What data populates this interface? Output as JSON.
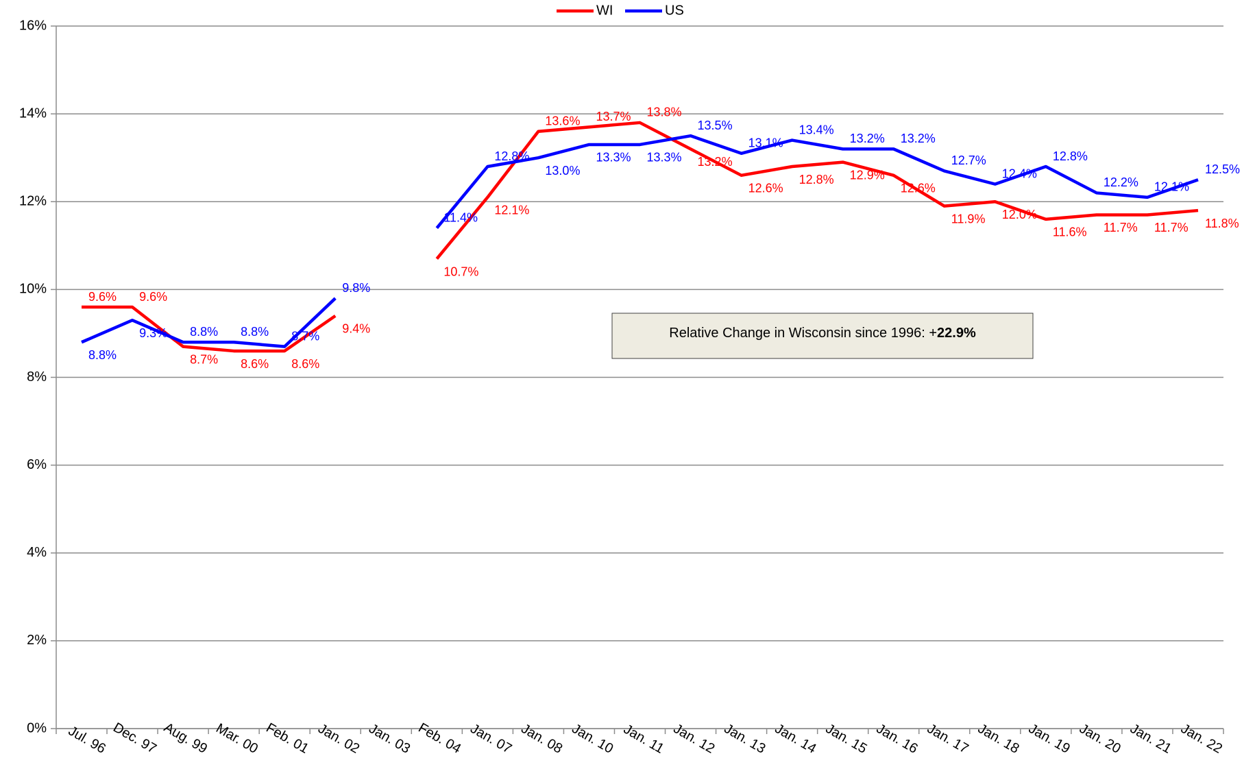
{
  "chart_data": {
    "type": "line",
    "categories": [
      "Jul. 96",
      "Dec. 97",
      "Aug. 99",
      "Mar. 00",
      "Feb. 01",
      "Jan. 02",
      "Jan. 03",
      "Feb. 04",
      "Jan. 07",
      "Jan. 08",
      "Jan. 10",
      "Jan. 11",
      "Jan. 12",
      "Jan. 13",
      "Jan. 14",
      "Jan. 15",
      "Jan. 16",
      "Jan. 17",
      "Jan. 18",
      "Jan. 19",
      "Jan. 20",
      "Jan. 21",
      "Jan. 22"
    ],
    "series": [
      {
        "name": "WI",
        "color": "#ff0000",
        "values": [
          9.6,
          9.6,
          8.7,
          8.6,
          8.6,
          9.4,
          null,
          10.7,
          12.1,
          13.6,
          13.7,
          13.8,
          13.2,
          12.6,
          12.8,
          12.9,
          12.6,
          11.9,
          12.0,
          11.6,
          11.7,
          11.7,
          11.8
        ],
        "value_labels": [
          "9.6%",
          "9.6%",
          "8.7%",
          "8.6%",
          "8.6%",
          "9.4%",
          null,
          "10.7%",
          "12.1%",
          "13.6%",
          "13.7%",
          "13.8%",
          "13.2%",
          "12.6%",
          "12.8%",
          "12.9%",
          "12.6%",
          "11.9%",
          "12.0%",
          "11.6%",
          "11.7%",
          "11.7%",
          "11.8%"
        ]
      },
      {
        "name": "US",
        "color": "#0000ff",
        "values": [
          8.8,
          9.3,
          8.8,
          8.8,
          8.7,
          9.8,
          null,
          11.4,
          12.8,
          13.0,
          13.3,
          13.3,
          13.5,
          13.1,
          13.4,
          13.2,
          13.2,
          12.7,
          12.4,
          12.8,
          12.2,
          12.1,
          12.5
        ],
        "value_labels": [
          "8.8%",
          "9.3%",
          "8.8%",
          "8.8%",
          "8.7%",
          "9.8%",
          null,
          "11.4%",
          "12.8%",
          "13.0%",
          "13.3%",
          "13.3%",
          "13.5%",
          "13.1%",
          "13.4%",
          "13.2%",
          "13.2%",
          "12.7%",
          "12.4%",
          "12.8%",
          "12.2%",
          "12.1%",
          "12.5%"
        ]
      }
    ],
    "ylim": [
      0,
      16
    ],
    "yticks": [
      {
        "value": 0,
        "label": "0%"
      },
      {
        "value": 2,
        "label": "2%"
      },
      {
        "value": 4,
        "label": "4%"
      },
      {
        "value": 6,
        "label": "6%"
      },
      {
        "value": 8,
        "label": "8%"
      },
      {
        "value": 10,
        "label": "10%"
      },
      {
        "value": 12,
        "label": "12%"
      },
      {
        "value": 14,
        "label": "14%"
      },
      {
        "value": 16,
        "label": "16%"
      }
    ],
    "grid": true,
    "legend": "top",
    "annotation": "Relative Change in Wisconsin since 1996: +",
    "annotation_bold": "22.9%"
  }
}
